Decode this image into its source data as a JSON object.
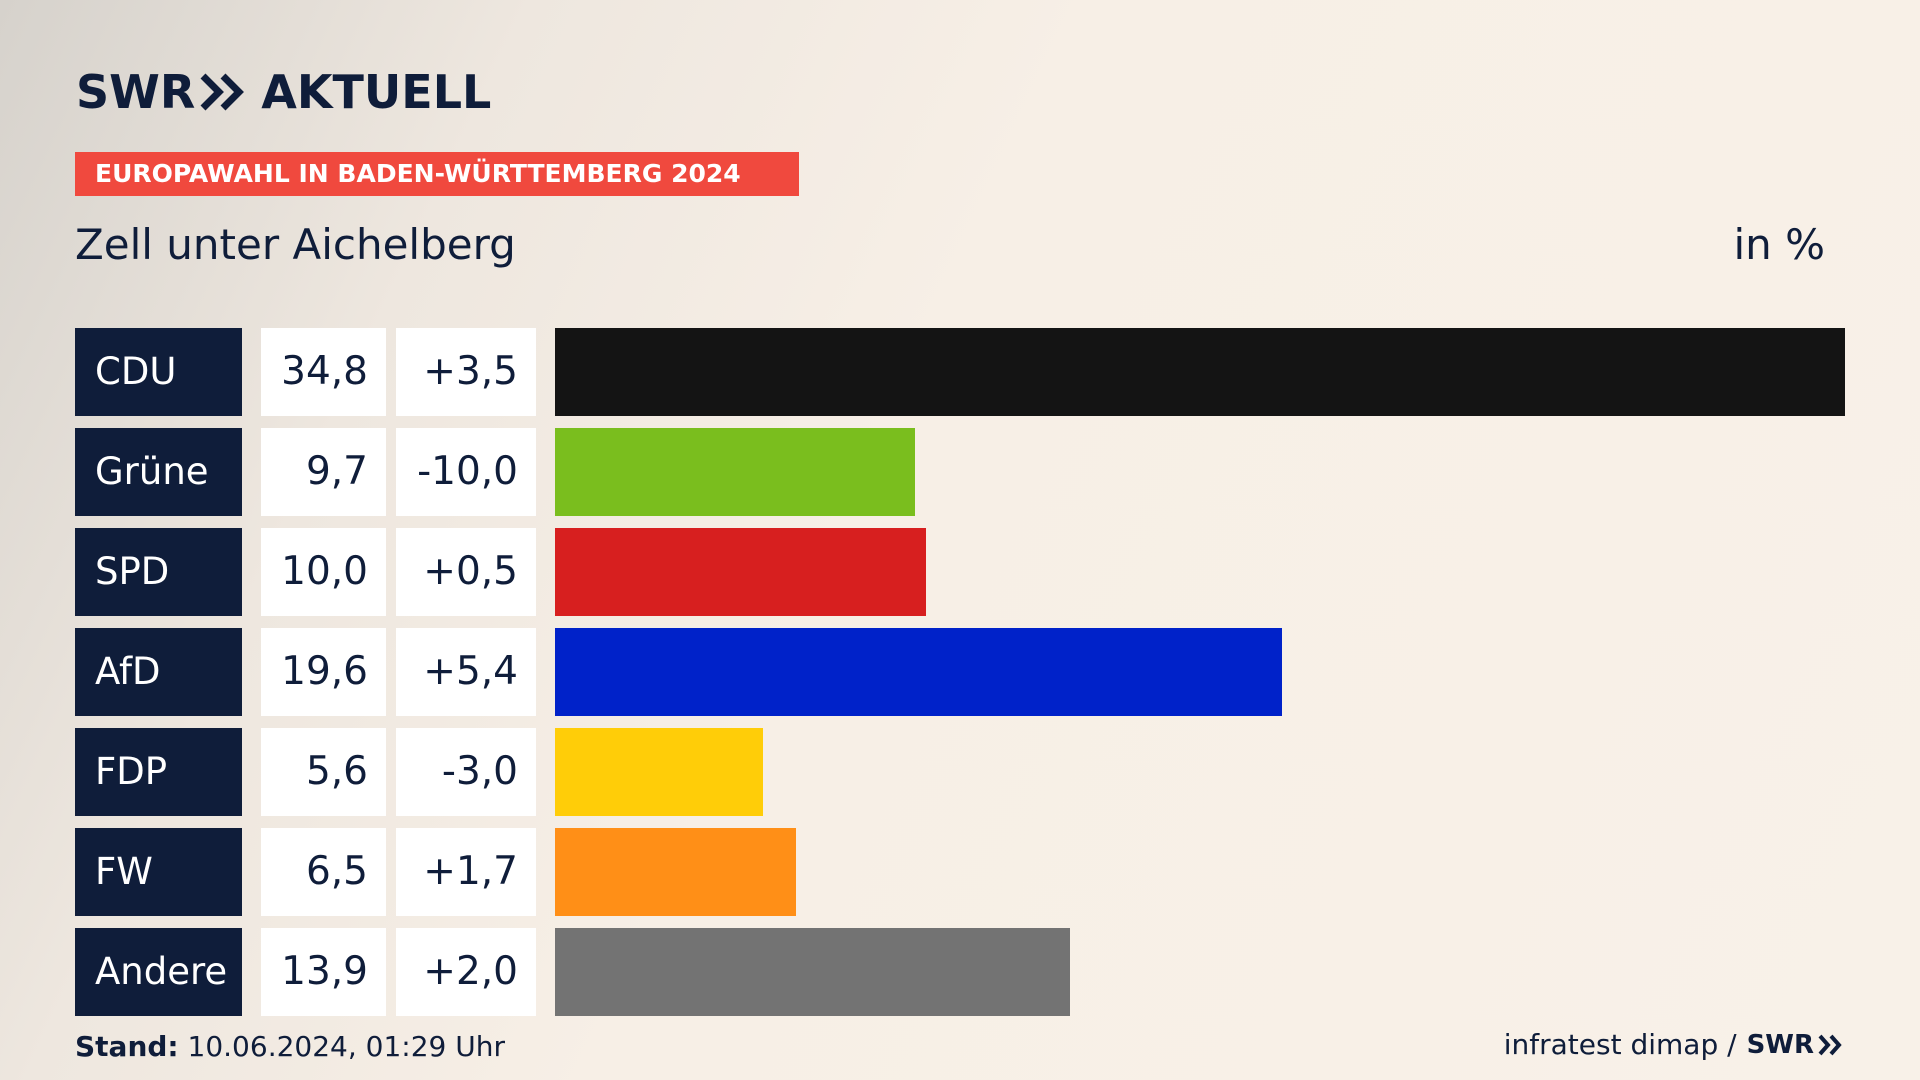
{
  "brand": {
    "logo_left": "SWR",
    "logo_right": "AKTUELL",
    "footer_logo": "SWR"
  },
  "banner": "EUROPAWAHL IN BADEN-WÜRTTEMBERG 2024",
  "subtitle": "Zell unter Aichelberg",
  "unit": "in %",
  "footer": {
    "stand_label": "Stand:",
    "stand_value": "10.06.2024, 01:29 Uhr",
    "source": "infratest dimap /"
  },
  "colors": {
    "navy": "#0f1d3a",
    "banner": "#f0493e"
  },
  "chart_data": {
    "type": "bar",
    "orientation": "horizontal",
    "categories": [
      "CDU",
      "Grüne",
      "SPD",
      "AfD",
      "FDP",
      "FW",
      "Andere"
    ],
    "values": [
      34.8,
      9.7,
      10.0,
      19.6,
      5.6,
      6.5,
      13.9
    ],
    "value_labels": [
      "34,8",
      "9,7",
      "10,0",
      "19,6",
      "5,6",
      "6,5",
      "13,9"
    ],
    "diff_labels": [
      "+3,5",
      "-10,0",
      "+0,5",
      "+5,4",
      "-3,0",
      "+1,7",
      "+2,0"
    ],
    "bar_colors": [
      "#141414",
      "#7abe1e",
      "#d71f1f",
      "#0022c9",
      "#ffcd08",
      "#ff8f17",
      "#737373"
    ],
    "xlim": [
      0,
      34.8
    ]
  }
}
